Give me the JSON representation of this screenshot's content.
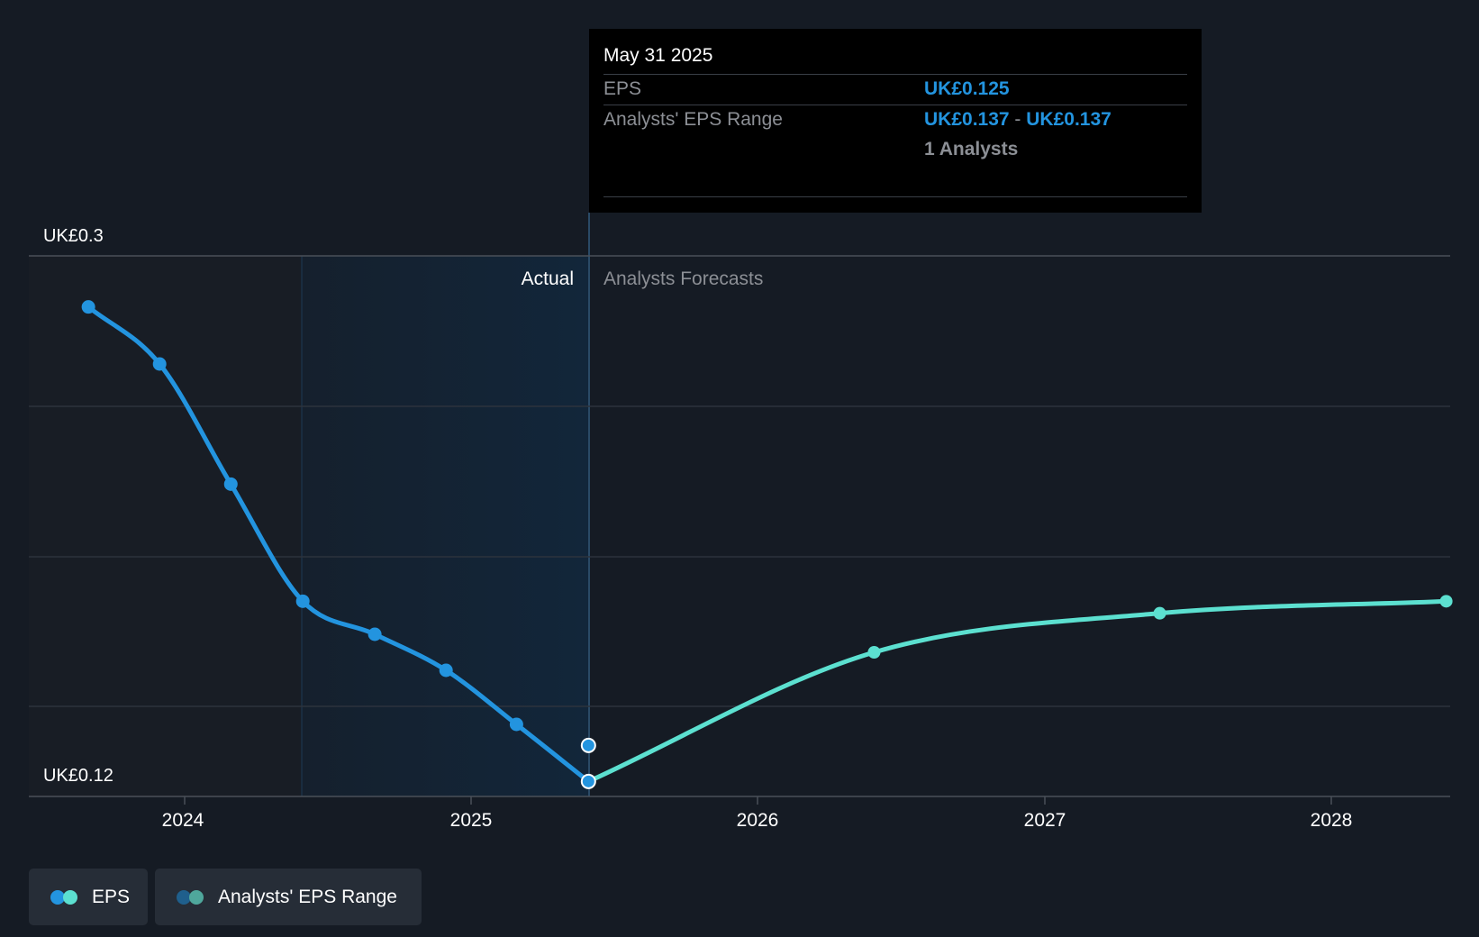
{
  "chart_data": {
    "type": "line",
    "y_axis": {
      "top_label": "UK£0.3",
      "bottom_label": "UK£0.12",
      "ylim": [
        0.12,
        0.3
      ]
    },
    "x_axis": {
      "tick_labels": [
        "2024",
        "2025",
        "2026",
        "2027",
        "2028"
      ]
    },
    "regions": {
      "actual_label": "Actual",
      "forecast_label": "Analysts Forecasts"
    },
    "series": [
      {
        "name": "EPS",
        "kind": "actual",
        "color": "#2394df",
        "points": [
          {
            "x": "2023-08-31",
            "y": 0.283
          },
          {
            "x": "2023-11-30",
            "y": 0.264
          },
          {
            "x": "2024-02-29",
            "y": 0.224
          },
          {
            "x": "2024-05-31",
            "y": 0.185
          },
          {
            "x": "2024-08-31",
            "y": 0.174
          },
          {
            "x": "2024-11-30",
            "y": 0.162
          },
          {
            "x": "2025-02-28",
            "y": 0.144
          },
          {
            "x": "2025-05-31",
            "y": 0.125
          }
        ]
      },
      {
        "name": "EPS",
        "kind": "forecast",
        "color": "#5ce0d0",
        "points": [
          {
            "x": "2025-05-31",
            "y": 0.125
          },
          {
            "x": "2026-05-31",
            "y": 0.168
          },
          {
            "x": "2027-05-31",
            "y": 0.181
          },
          {
            "x": "2028-05-31",
            "y": 0.185
          }
        ]
      },
      {
        "name": "Analysts' EPS Range",
        "kind": "range",
        "color": "#2394df",
        "points": [
          {
            "x": "2025-05-31",
            "low": 0.137,
            "high": 0.137
          }
        ]
      }
    ],
    "grid": true
  },
  "tooltip": {
    "date": "May 31 2025",
    "eps_label": "EPS",
    "eps_value": "UK£0.125",
    "range_label": "Analysts' EPS Range",
    "range_low": "UK£0.137",
    "range_sep": "-",
    "range_high": "UK£0.137",
    "analysts": "1 Analysts"
  },
  "legend": [
    {
      "label": "EPS",
      "colors": [
        "#2394df",
        "#5ce0d0"
      ]
    },
    {
      "label": "Analysts' EPS Range",
      "colors": [
        "#1f5f8c",
        "#4fa79c"
      ]
    }
  ],
  "colors": {
    "background": "#151b24",
    "actual_shade": "#132536",
    "grid": "#2c333d",
    "eps_actual": "#2394df",
    "eps_forecast": "#5ce0d0"
  }
}
